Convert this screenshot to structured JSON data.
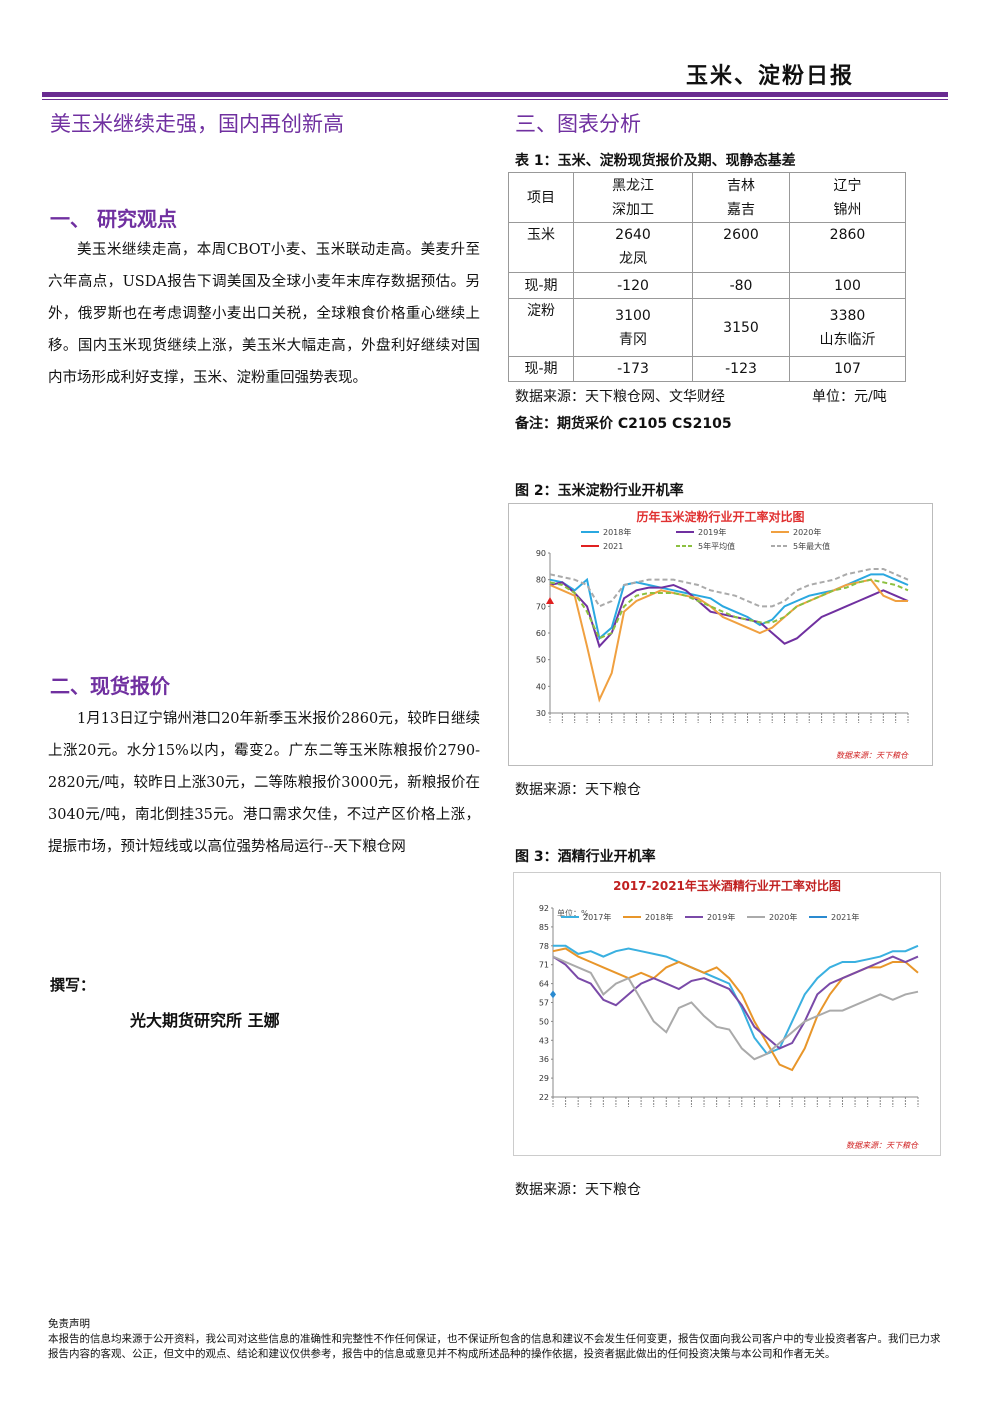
{
  "header": {
    "title": "玉米、淀粉日报"
  },
  "left": {
    "headline": "美玉米继续走强，国内再创新高",
    "section1": {
      "title": "一、  研究观点",
      "body": "美玉米继续走高，本周CBOT小麦、玉米联动走高。美麦升至六年高点，USDA报告下调美国及全球小麦年末库存数据预估。另外，俄罗斯也在考虑调整小麦出口关税，全球粮食价格重心继续上移。国内玉米现货继续上涨，美玉米大幅走高，外盘利好继续对国内市场形成利好支撑，玉米、淀粉重回强势表现。"
    },
    "section2": {
      "title": "二、现货报价",
      "body": "1月13日辽宁锦州港口20年新季玉米报价2860元，较昨日继续上涨20元。水分15%以内，霉变2。广东二等玉米陈粮报价2790-2820元/吨，较昨日上涨30元，二等陈粮报价3000元，新粮报价在3040元/吨，南北倒挂35元。港口需求欠佳，不过产区价格上涨，提振市场，预计短线或以高位强势格局运行--天下粮仓网"
    },
    "author": {
      "label": "撰写：",
      "name": "光大期货研究所  王娜"
    }
  },
  "right": {
    "section3_title": "三、图表分析",
    "table1": {
      "caption": "表 1：玉米、淀粉现货报价及期、现静态基差",
      "header": [
        "项目",
        "黑龙江\n深加工",
        "吉林\n嘉吉",
        "辽宁\n锦州"
      ],
      "rows": [
        [
          "玉米",
          {
            "value": 2640,
            "sub": "龙凤"
          },
          2600,
          2860
        ],
        [
          "现-期",
          -120,
          -80,
          100
        ],
        [
          "淀粉",
          {
            "value": 3100,
            "sub": "青冈"
          },
          3150,
          {
            "value": 3380,
            "sub": "山东临沂"
          }
        ],
        [
          "现-期",
          -173,
          -123,
          107
        ]
      ],
      "source": "数据来源：天下粮仓网、文华财经",
      "unit": "单位：元/吨",
      "note": "备注：期货采价 C2105   CS2105"
    },
    "figure2": {
      "caption": "图 2：玉米淀粉行业开机率",
      "source": "数据来源：天下粮仓"
    },
    "figure3": {
      "caption": "图 3：酒精行业开机率",
      "source": "数据来源：天下粮仓"
    }
  },
  "chart_data": [
    {
      "type": "line",
      "title": "历年玉米淀粉行业开工率对比图",
      "note": "数据来源：天下粮仓",
      "categories": [
        null,
        null,
        null,
        null,
        null,
        null,
        null,
        null,
        null,
        null,
        null,
        null,
        null,
        null,
        null,
        null,
        null,
        null,
        null,
        null,
        null,
        null,
        null,
        null,
        null,
        null,
        null,
        null,
        null,
        null
      ],
      "ylim": [
        30,
        90
      ],
      "yticks": [
        30,
        40,
        50,
        60,
        70,
        80,
        90
      ],
      "series": [
        {
          "name": "2018年",
          "color": "#2aa8e0",
          "values": [
            80,
            79,
            76,
            80,
            58,
            62,
            78,
            79,
            78,
            77,
            76,
            75,
            74,
            73,
            70,
            68,
            66,
            63,
            65,
            70,
            72,
            74,
            75,
            76,
            78,
            80,
            82,
            82,
            80,
            78
          ]
        },
        {
          "name": "2019年",
          "color": "#7030a0",
          "values": [
            78,
            79,
            75,
            70,
            55,
            60,
            73,
            76,
            77,
            77,
            78,
            76,
            72,
            68,
            67,
            66,
            65,
            64,
            60,
            56,
            58,
            62,
            66,
            68,
            70,
            72,
            74,
            76,
            74,
            72
          ]
        },
        {
          "name": "2020年",
          "color": "#f0a040",
          "values": [
            78,
            76,
            74,
            55,
            35,
            45,
            68,
            72,
            74,
            76,
            75,
            74,
            73,
            70,
            66,
            64,
            62,
            60,
            62,
            66,
            70,
            72,
            74,
            76,
            78,
            79,
            80,
            74,
            72,
            72
          ]
        },
        {
          "name": "2021",
          "color": "#e02020",
          "marker": "triangle",
          "values": [
            72,
            null,
            null,
            null,
            null,
            null,
            null,
            null,
            null,
            null,
            null,
            null,
            null,
            null,
            null,
            null,
            null,
            null,
            null,
            null,
            null,
            null,
            null,
            null,
            null,
            null,
            null,
            null,
            null,
            null
          ]
        },
        {
          "name": "5年平均值",
          "color": "#8cc040",
          "dashed": true,
          "values": [
            79,
            78,
            75,
            68,
            58,
            60,
            70,
            74,
            75,
            75,
            75,
            74,
            72,
            70,
            68,
            66,
            65,
            64,
            64,
            66,
            70,
            72,
            74,
            76,
            77,
            79,
            80,
            79,
            78,
            76
          ]
        },
        {
          "name": "5年最大值",
          "color": "#aaaaaa",
          "dashed": true,
          "values": [
            82,
            81,
            80,
            78,
            70,
            72,
            78,
            79,
            80,
            80,
            80,
            79,
            78,
            76,
            75,
            74,
            72,
            70,
            70,
            72,
            76,
            78,
            79,
            80,
            82,
            83,
            84,
            84,
            82,
            80
          ]
        }
      ]
    },
    {
      "type": "line",
      "title": "2017-2021年玉米酒精行业开工率对比图",
      "subtitle": "单位：%",
      "note": "数据来源：天下粮仓",
      "categories": [
        null,
        null,
        null,
        null,
        null,
        null,
        null,
        null,
        null,
        null,
        null,
        null,
        null,
        null,
        null,
        null,
        null,
        null,
        null,
        null,
        null,
        null,
        null,
        null,
        null,
        null,
        null,
        null,
        null,
        null
      ],
      "ylim": [
        22,
        92
      ],
      "yticks": [
        22,
        29,
        36,
        43,
        50,
        57,
        64,
        71,
        78,
        85,
        92
      ],
      "series": [
        {
          "name": "2017年",
          "color": "#3ab0e0",
          "values": [
            78,
            78,
            75,
            76,
            74,
            76,
            77,
            76,
            75,
            74,
            72,
            70,
            68,
            66,
            64,
            55,
            44,
            38,
            40,
            50,
            60,
            66,
            70,
            72,
            72,
            73,
            74,
            76,
            76,
            78
          ]
        },
        {
          "name": "2018年",
          "color": "#e8962a",
          "values": [
            76,
            77,
            74,
            72,
            70,
            68,
            66,
            68,
            66,
            70,
            72,
            70,
            68,
            70,
            66,
            60,
            50,
            42,
            34,
            32,
            40,
            52,
            60,
            66,
            68,
            70,
            70,
            72,
            72,
            68
          ]
        },
        {
          "name": "2019年",
          "color": "#7a4aa8",
          "values": [
            74,
            71,
            66,
            64,
            58,
            56,
            60,
            64,
            66,
            64,
            62,
            65,
            66,
            64,
            62,
            56,
            48,
            44,
            40,
            42,
            50,
            60,
            64,
            66,
            68,
            70,
            72,
            74,
            72,
            74
          ]
        },
        {
          "name": "2020年",
          "color": "#aaaaaa",
          "values": [
            74,
            72,
            70,
            68,
            60,
            64,
            66,
            58,
            50,
            46,
            55,
            57,
            52,
            48,
            47,
            40,
            36,
            38,
            42,
            46,
            50,
            52,
            54,
            54,
            56,
            58,
            60,
            58,
            60,
            61
          ]
        },
        {
          "name": "2021年",
          "color": "#2a8ad0",
          "marker": "diamond",
          "values": [
            60,
            null,
            null,
            null,
            null,
            null,
            null,
            null,
            null,
            null,
            null,
            null,
            null,
            null,
            null,
            null,
            null,
            null,
            null,
            null,
            null,
            null,
            null,
            null,
            null,
            null,
            null,
            null,
            null,
            null
          ]
        }
      ]
    }
  ],
  "disclaimer": {
    "title": "免责声明",
    "body": "本报告的信息均来源于公开资料，我公司对这些信息的准确性和完整性不作任何保证，也不保证所包含的信息和建议不会发生任何变更，报告仅面向我公司客户中的专业投资者客户。我们已力求报告内容的客观、公正，但文中的观点、结论和建议仅供参考，报告中的信息或意见并不构成所述品种的操作依据，投资者据此做出的任何投资决策与本公司和作者无关。"
  }
}
